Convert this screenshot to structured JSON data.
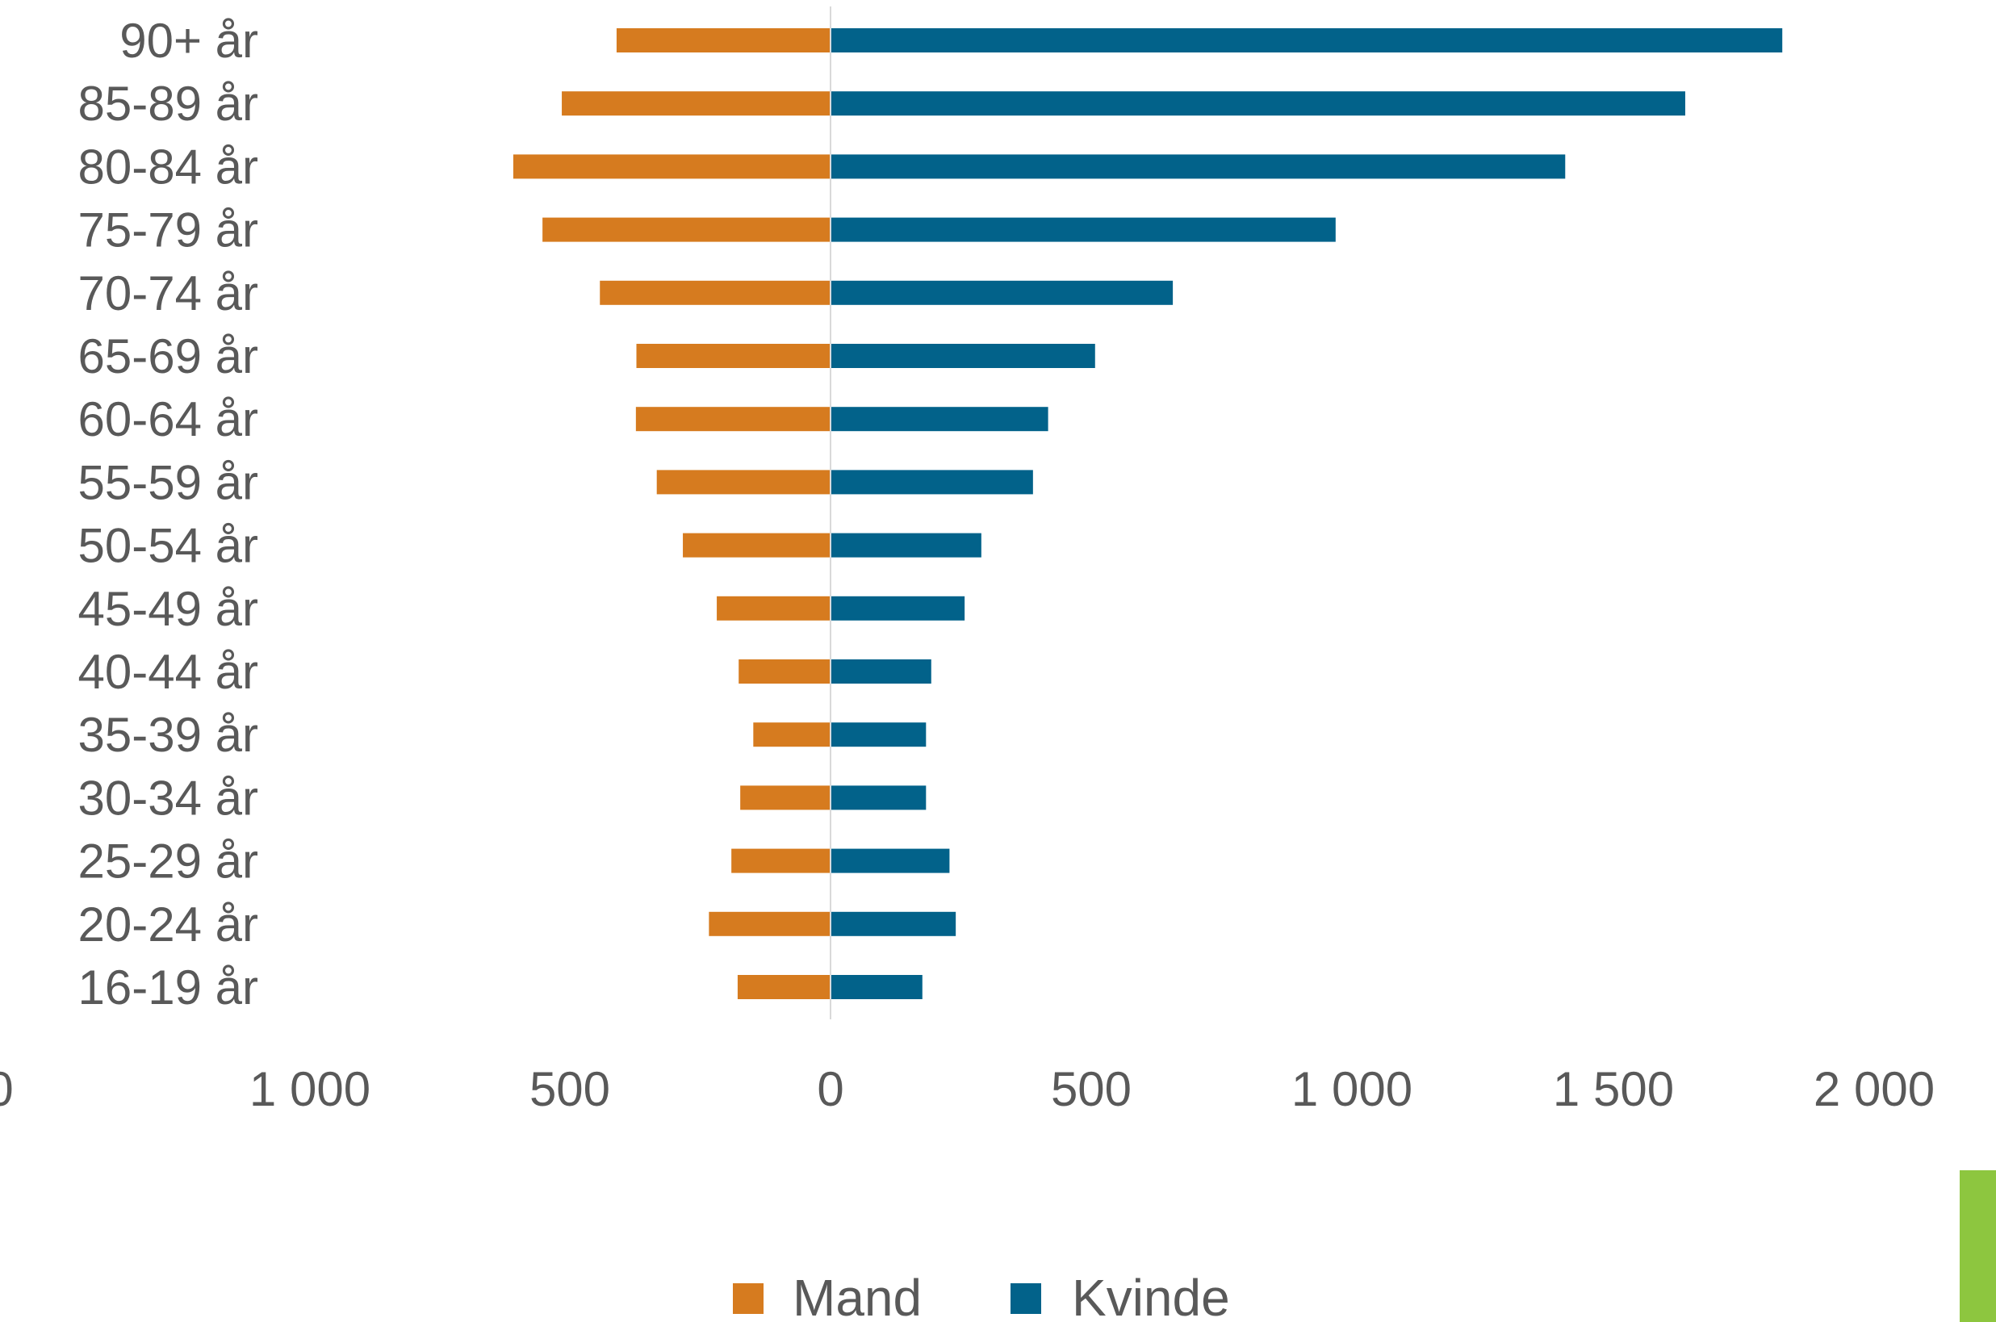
{
  "chart_data": {
    "type": "bar",
    "orientation": "horizontal",
    "categories": [
      "90+ år",
      "85-89 år",
      "80-84 år",
      "75-79 år",
      "70-74 år",
      "65-69 år",
      "60-64 år",
      "55-59 år",
      "50-54 år",
      "45-49 år",
      "40-44 år",
      "35-39 år",
      "30-34 år",
      "25-29 år",
      "20-24 år",
      "16-19 år"
    ],
    "series": [
      {
        "name": "Mand",
        "color": "#d67b1f",
        "values": [
          410,
          515,
          608,
          552,
          442,
          372,
          373,
          333,
          283,
          218,
          176,
          148,
          173,
          190,
          233,
          178
        ]
      },
      {
        "name": "Kvinde",
        "color": "#02628a",
        "values": [
          1824,
          1638,
          1408,
          968,
          656,
          507,
          417,
          388,
          289,
          257,
          193,
          183,
          183,
          228,
          240,
          176
        ]
      }
    ],
    "xticks": [
      "0",
      "1 000",
      "500",
      "0",
      "500",
      "1 000",
      "1 500",
      "2 000"
    ],
    "xlim": [
      -1500,
      2000
    ],
    "legend_position": "bottom",
    "grid": false
  },
  "accent_color": "#8dc63f"
}
